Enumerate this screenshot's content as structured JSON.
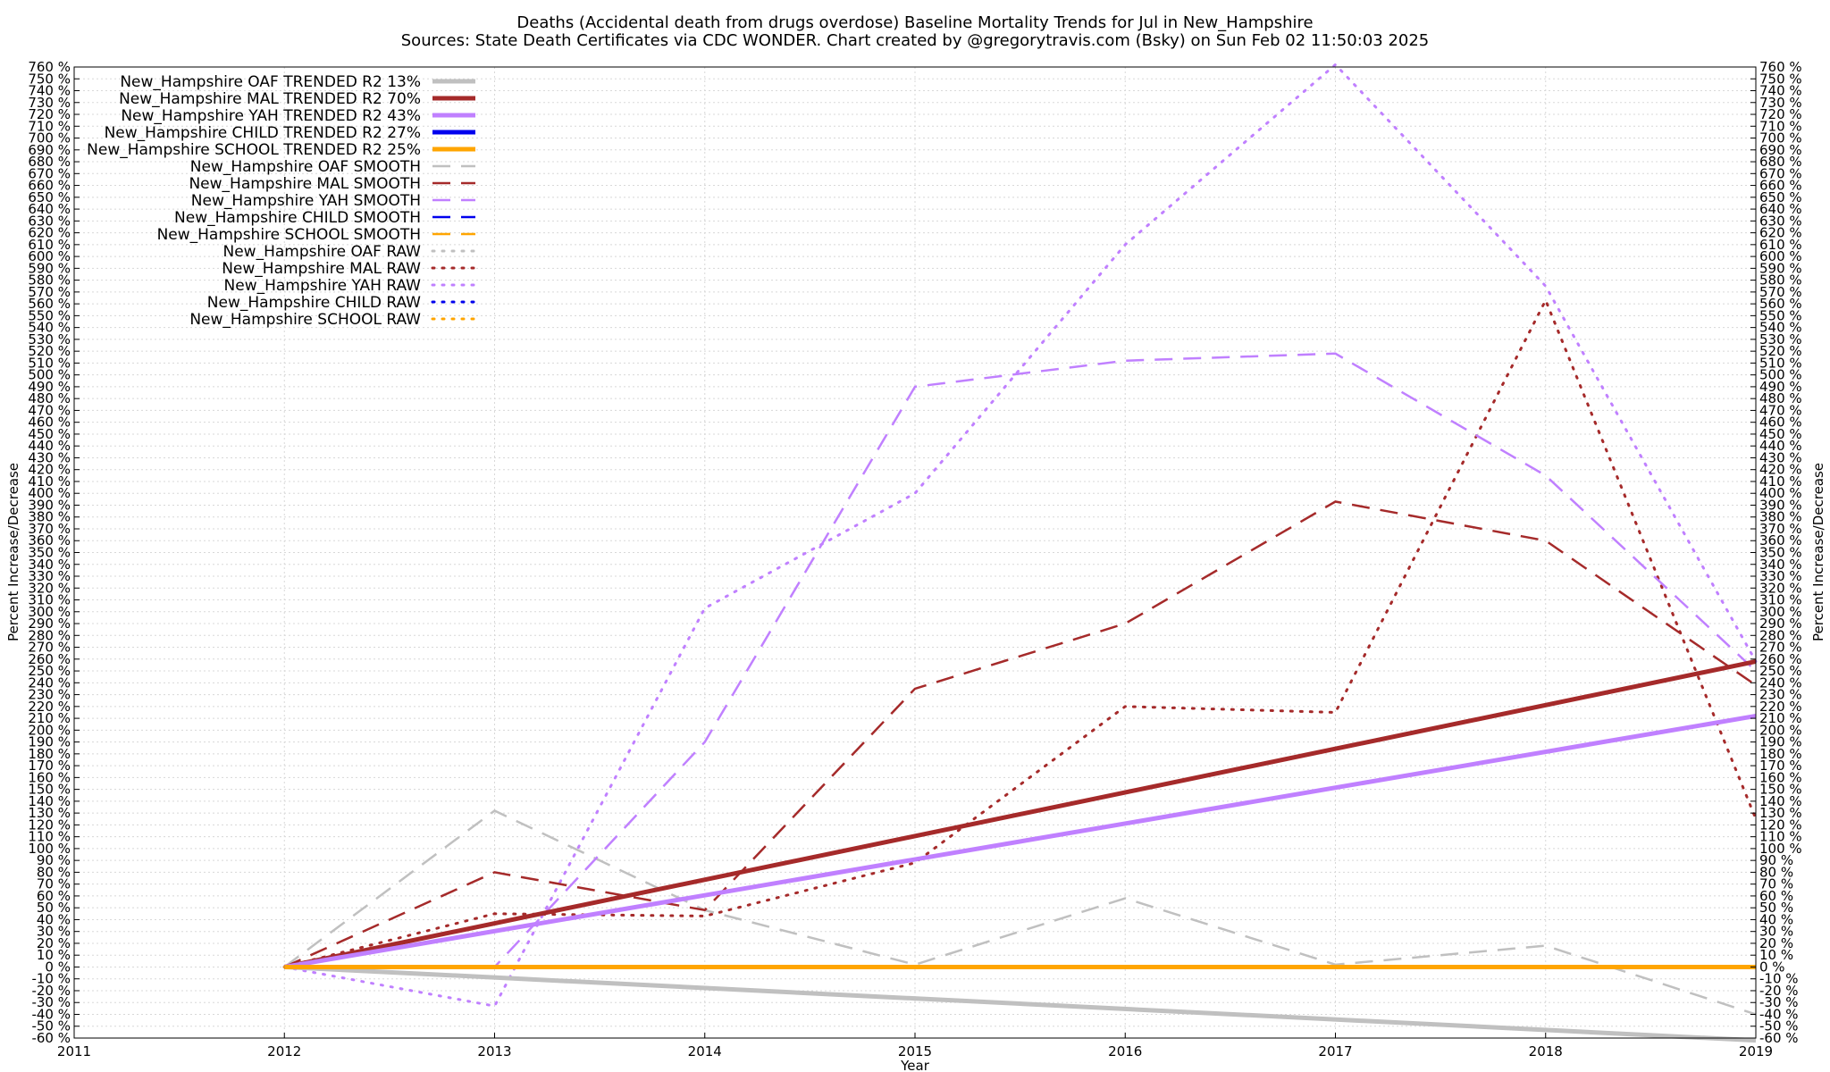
{
  "chart_data": {
    "type": "line",
    "title_line1": "Deaths (Accidental death from drugs overdose)  Baseline Mortality Trends for Jul in New_Hampshire",
    "title_line2": "Sources: State Death Certificates via CDC WONDER.               Chart created by @gregorytravis.com (Bsky) on Sun Feb 02 11:50:03 2025",
    "xlabel": "Year",
    "ylabel_left": "Percent Increase/Decrease",
    "ylabel_right": "Percent Increase/Decrease",
    "xlim": [
      2011,
      2019
    ],
    "ylim": [
      -60,
      760
    ],
    "x_ticks": [
      2011,
      2012,
      2013,
      2014,
      2015,
      2016,
      2017,
      2018,
      2019
    ],
    "y_tick_step": 10,
    "y_tick_suffix": " %",
    "grid": true,
    "legend_position": "top-left",
    "series": [
      {
        "name": "New_Hampshire OAF TRENDED R2  13%",
        "style": "trend",
        "color": "#c0c0c0",
        "x": [
          2012,
          2019
        ],
        "y": [
          0,
          -62
        ]
      },
      {
        "name": "New_Hampshire MAL TRENDED R2  70%",
        "style": "trend",
        "color": "#a52a2a",
        "x": [
          2012,
          2019
        ],
        "y": [
          0,
          258
        ]
      },
      {
        "name": "New_Hampshire YAH TRENDED R2  43%",
        "style": "trend",
        "color": "#c080ff",
        "x": [
          2012,
          2019
        ],
        "y": [
          0,
          212
        ]
      },
      {
        "name": "New_Hampshire CHILD TRENDED R2  27%",
        "style": "trend",
        "color": "#0000ee",
        "x": [
          2012,
          2019
        ],
        "y": [
          0,
          0
        ]
      },
      {
        "name": "New_Hampshire SCHOOL TRENDED R2  25%",
        "style": "trend",
        "color": "#ffa500",
        "x": [
          2012,
          2019
        ],
        "y": [
          0,
          0
        ]
      },
      {
        "name": "New_Hampshire OAF SMOOTH",
        "style": "smooth",
        "color": "#c0c0c0",
        "x": [
          2012,
          2013,
          2014,
          2015,
          2016,
          2017,
          2018,
          2019
        ],
        "y": [
          0,
          132,
          48,
          2,
          58,
          2,
          18,
          -40
        ]
      },
      {
        "name": "New_Hampshire MAL SMOOTH",
        "style": "smooth",
        "color": "#a52a2a",
        "x": [
          2012,
          2013,
          2014,
          2015,
          2016,
          2017,
          2018,
          2019
        ],
        "y": [
          0,
          80,
          48,
          235,
          290,
          393,
          360,
          238
        ]
      },
      {
        "name": "New_Hampshire YAH SMOOTH",
        "style": "smooth",
        "color": "#c080ff",
        "x": [
          2012,
          2013,
          2014,
          2015,
          2016,
          2017,
          2018,
          2019
        ],
        "y": [
          0,
          0,
          190,
          490,
          512,
          518,
          415,
          250
        ]
      },
      {
        "name": "New_Hampshire CHILD SMOOTH",
        "style": "smooth",
        "color": "#0000ee",
        "x": [
          2012,
          2019
        ],
        "y": [
          0,
          0
        ]
      },
      {
        "name": "New_Hampshire SCHOOL SMOOTH",
        "style": "smooth",
        "color": "#ffa500",
        "x": [
          2012,
          2019
        ],
        "y": [
          0,
          0
        ]
      },
      {
        "name": "New_Hampshire OAF RAW",
        "style": "raw",
        "color": "#c0c0c0",
        "x": [
          2012,
          2019
        ],
        "y": [
          0,
          0
        ]
      },
      {
        "name": "New_Hampshire MAL RAW",
        "style": "raw",
        "color": "#a52a2a",
        "x": [
          2012,
          2013,
          2014,
          2015,
          2016,
          2017,
          2018,
          2019
        ],
        "y": [
          0,
          45,
          43,
          88,
          220,
          215,
          563,
          125
        ]
      },
      {
        "name": "New_Hampshire YAH RAW",
        "style": "raw",
        "color": "#c080ff",
        "x": [
          2012,
          2013,
          2014,
          2015,
          2016,
          2017,
          2018,
          2019
        ],
        "y": [
          0,
          -33,
          303,
          400,
          610,
          762,
          575,
          258
        ]
      },
      {
        "name": "New_Hampshire CHILD RAW",
        "style": "raw",
        "color": "#0000ee",
        "x": [
          2012,
          2019
        ],
        "y": [
          0,
          0
        ]
      },
      {
        "name": "New_Hampshire SCHOOL RAW",
        "style": "raw",
        "color": "#ffa500",
        "x": [
          2012,
          2019
        ],
        "y": [
          0,
          0
        ]
      }
    ]
  }
}
